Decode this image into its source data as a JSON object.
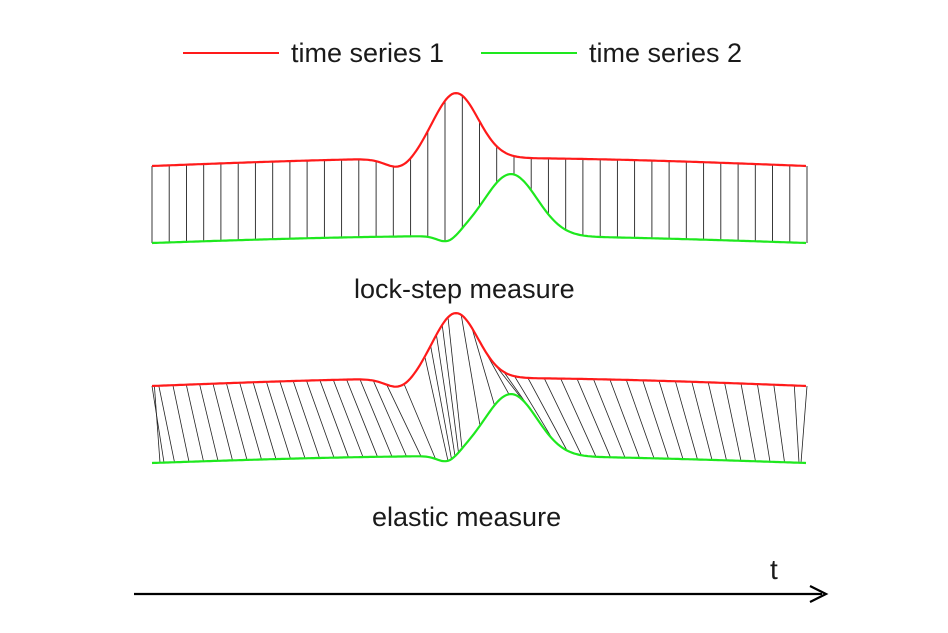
{
  "legend": {
    "series1": {
      "label": "time series 1",
      "color": "#ff1a1a"
    },
    "series2": {
      "label": "time series 2",
      "color": "#1ee81e"
    }
  },
  "panels": {
    "lockstep": {
      "caption": "lock-step measure"
    },
    "elastic": {
      "caption": "elastic measure"
    }
  },
  "axis": {
    "label": "t"
  }
}
